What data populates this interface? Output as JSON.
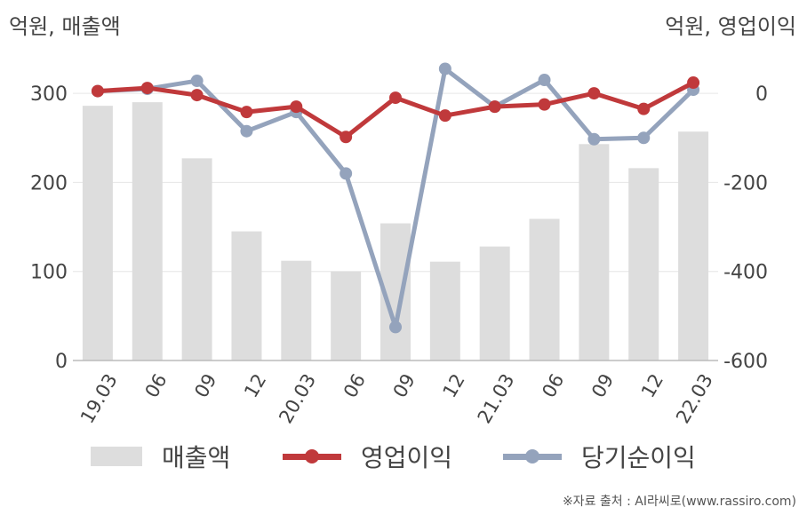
{
  "unit_left": "억원, 매출액",
  "unit_right": "억원, 영업이익",
  "source": "※자료 출처 : AI라씨로(www.rassiro.com)",
  "colors": {
    "revenue": "#dddddd",
    "operating_profit": "#c0393b",
    "net_income": "#94a3bc",
    "grid": "#e6e6e6",
    "axis": "#bbbbbb"
  },
  "chart_data": {
    "type": "bar",
    "categories": [
      "19.03",
      "06",
      "09",
      "12",
      "20.03",
      "06",
      "09",
      "12",
      "21.03",
      "06",
      "09",
      "12",
      "22.03"
    ],
    "y_left": {
      "ylim": [
        0,
        330
      ],
      "ticks": [
        0,
        100,
        200,
        300
      ],
      "tick_labels": [
        "0",
        "100",
        "200",
        "300"
      ]
    },
    "y_right": {
      "ylim": [
        -600,
        60
      ],
      "ticks": [
        -600,
        -400,
        -200,
        0
      ],
      "tick_labels": [
        "-600",
        "-400",
        "-200",
        "0"
      ]
    },
    "grid": true,
    "legend_position": "bottom",
    "series": [
      {
        "name": "매출액",
        "type": "bar",
        "axis": "left",
        "values": [
          286,
          290,
          227,
          145,
          112,
          100,
          154,
          111,
          128,
          159,
          243,
          216,
          257
        ]
      },
      {
        "name": "영업이익",
        "type": "line",
        "axis": "right",
        "values": [
          5,
          12,
          -4,
          -42,
          -30,
          -98,
          -10,
          -50,
          -30,
          -25,
          0,
          -35,
          24
        ]
      },
      {
        "name": "당기순이익",
        "type": "line",
        "axis": "right",
        "values": [
          5,
          10,
          28,
          -85,
          -42,
          -180,
          -525,
          55,
          -30,
          30,
          -103,
          -100,
          8
        ]
      }
    ]
  }
}
